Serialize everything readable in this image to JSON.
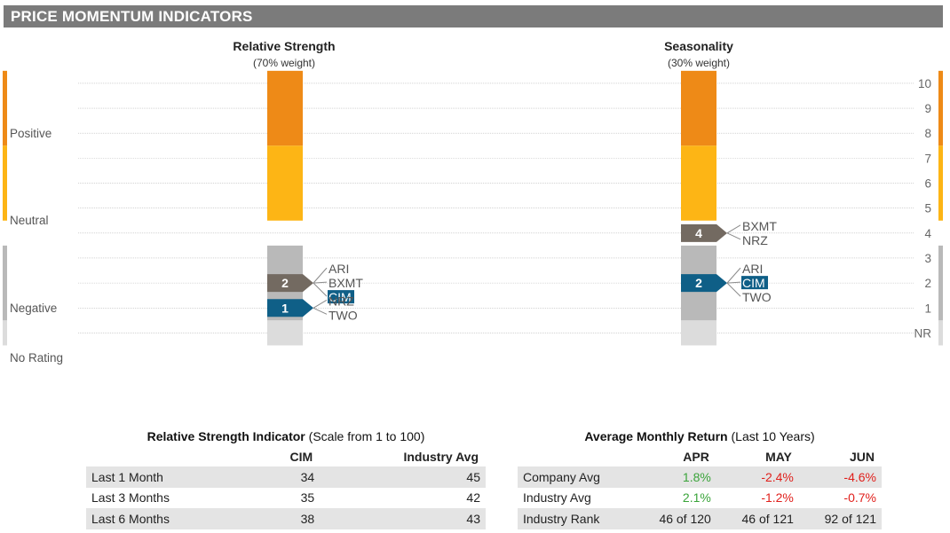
{
  "header": {
    "title": "PRICE MOMENTUM INDICATORS"
  },
  "colors": {
    "positive": "#ee8a17",
    "neutral": "#fdb515",
    "negative": "#b9b9b9",
    "no_rating": "#dcdcdc",
    "company_flag": "#0f5f87",
    "peer_flag": "#736a61",
    "green": "#3aa43a",
    "red": "#e0201c"
  },
  "sections": {
    "positive": "Positive",
    "neutral": "Neutral",
    "negative": "Negative",
    "no_rating": "No Rating"
  },
  "chart_data": [
    {
      "type": "bar",
      "title": "Relative Strength",
      "subtitle": "(70% weight)",
      "y_scale": [
        "NR",
        "1",
        "2",
        "3",
        "4",
        "5",
        "6",
        "7",
        "8",
        "9",
        "10"
      ],
      "bands": [
        {
          "name": "Positive",
          "from": 8,
          "to": 10,
          "color": "#ee8a17"
        },
        {
          "name": "Neutral",
          "from": 5,
          "to": 7,
          "color": "#fdb515"
        },
        {
          "name": "Negative",
          "from": 1,
          "to": 3,
          "color": "#b9b9b9"
        },
        {
          "name": "No Rating",
          "from": "NR",
          "to": "NR",
          "color": "#dcdcdc"
        }
      ],
      "markers": [
        {
          "value": 2,
          "label": "2",
          "kind": "peer",
          "names": [
            "ARI",
            "BXMT",
            "CIM"
          ],
          "highlight": "CIM"
        },
        {
          "value": 1,
          "label": "1",
          "kind": "company",
          "names": [
            "NRZ",
            "TWO"
          ]
        }
      ]
    },
    {
      "type": "bar",
      "title": "Seasonality",
      "subtitle": "(30% weight)",
      "y_scale": [
        "NR",
        "1",
        "2",
        "3",
        "4",
        "5",
        "6",
        "7",
        "8",
        "9",
        "10"
      ],
      "bands": [
        {
          "name": "Positive",
          "from": 8,
          "to": 10,
          "color": "#ee8a17"
        },
        {
          "name": "Neutral",
          "from": 5,
          "to": 7,
          "color": "#fdb515"
        },
        {
          "name": "Negative",
          "from": 1,
          "to": 3,
          "color": "#b9b9b9"
        },
        {
          "name": "No Rating",
          "from": "NR",
          "to": "NR",
          "color": "#dcdcdc"
        }
      ],
      "markers": [
        {
          "value": 4,
          "label": "4",
          "kind": "peer",
          "names": [
            "BXMT",
            "NRZ"
          ]
        },
        {
          "value": 2,
          "label": "2",
          "kind": "company",
          "names": [
            "ARI",
            "CIM",
            "TWO"
          ],
          "highlight": "CIM"
        }
      ]
    }
  ],
  "rs_table": {
    "title_bold": "Relative Strength Indicator",
    "title_rest": " (Scale from 1 to 100)",
    "columns": [
      "",
      "CIM",
      "Industry Avg"
    ],
    "rows": [
      {
        "label": "Last 1 Month",
        "cim": "34",
        "ind": "45"
      },
      {
        "label": "Last 3 Months",
        "cim": "35",
        "ind": "42"
      },
      {
        "label": "Last 6 Months",
        "cim": "38",
        "ind": "43"
      }
    ]
  },
  "amr_table": {
    "title_bold": "Average Monthly Return",
    "title_rest": " (Last 10 Years)",
    "columns": [
      "",
      "APR",
      "MAY",
      "JUN"
    ],
    "rows": [
      {
        "label": "Company Avg",
        "apr": "1.8%",
        "may": "-2.4%",
        "jun": "-4.6%",
        "apr_c": "pos",
        "may_c": "neg",
        "jun_c": "neg"
      },
      {
        "label": "Industry Avg",
        "apr": "2.1%",
        "may": "-1.2%",
        "jun": "-0.7%",
        "apr_c": "pos",
        "may_c": "neg",
        "jun_c": "neg"
      },
      {
        "label": "Industry Rank",
        "apr": "46 of 120",
        "may": "46 of 121",
        "jun": "92 of 121",
        "apr_c": "",
        "may_c": "",
        "jun_c": ""
      }
    ]
  }
}
